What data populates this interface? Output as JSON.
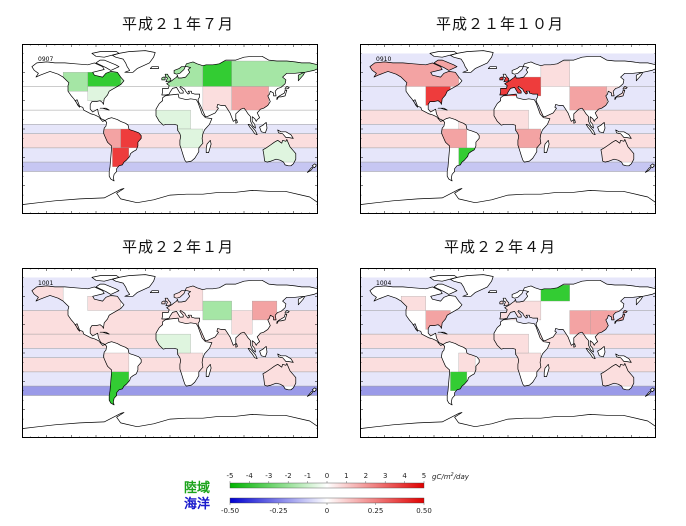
{
  "panels": [
    {
      "title": "平成２１年７月",
      "code": "0907"
    },
    {
      "title": "平成２１年１０月",
      "code": "0910"
    },
    {
      "title": "平成２２年１月",
      "code": "1001"
    },
    {
      "title": "平成２２年４月",
      "code": "1004"
    }
  ],
  "legend": {
    "land_label": "陸域",
    "ocean_label": "海洋",
    "land_color": "#1aa31a",
    "ocean_color": "#1a1acc",
    "land_ticks": [
      "-5",
      "-4",
      "-3",
      "-2",
      "-1",
      "0",
      "1",
      "2",
      "3",
      "4",
      "5"
    ],
    "ocean_ticks": [
      "-0.50",
      "-0.25",
      "0",
      "0.25",
      "0.50"
    ],
    "unit_prefix": "gC/m",
    "unit_exp": "2",
    "unit_suffix": "/day",
    "negative_land_color": "#00b400",
    "negative_ocean_color": "#0000d0",
    "positive_color": "#e00000"
  },
  "chart_data": {
    "type": "heatmap",
    "description_units": "land: gC/m2/day (-5 to 5), ocean: gC/m2/day (-0.50 to 0.50)",
    "land_range": [
      -5,
      5
    ],
    "ocean_range": [
      -0.5,
      0.5
    ]
  }
}
